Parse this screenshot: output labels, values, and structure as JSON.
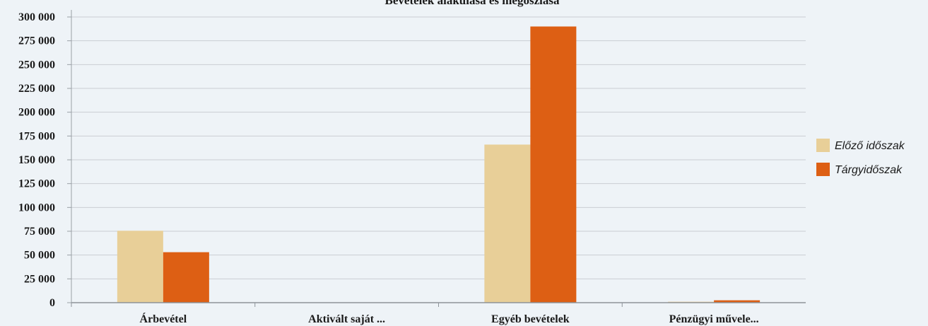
{
  "chart_data": {
    "type": "bar",
    "title": "Bevételek alakulása és megoszlása",
    "xlabel": "",
    "ylabel": "",
    "categories": [
      "Árbevétel",
      "Aktivált saját ...",
      "Egyéb bevételek",
      "Pénzügyi művele..."
    ],
    "series": [
      {
        "name": "Előző időszak",
        "values": [
          75500,
          0,
          166000,
          1000
        ],
        "color": "#e8cf98"
      },
      {
        "name": "Tárgyidőszak",
        "values": [
          53000,
          0,
          290000,
          2500
        ],
        "color": "#dd5f14"
      }
    ],
    "ylim": [
      0,
      300000
    ],
    "yticks": [
      0,
      25000,
      50000,
      75000,
      100000,
      125000,
      150000,
      175000,
      200000,
      225000,
      250000,
      275000,
      300000
    ],
    "ytick_labels": [
      "0",
      "25 000",
      "50 000",
      "75 000",
      "100 000",
      "125 000",
      "150 000",
      "175 000",
      "200 000",
      "225 000",
      "250 000",
      "275 000",
      "300 000"
    ],
    "grid": true,
    "legend_position": "right"
  }
}
